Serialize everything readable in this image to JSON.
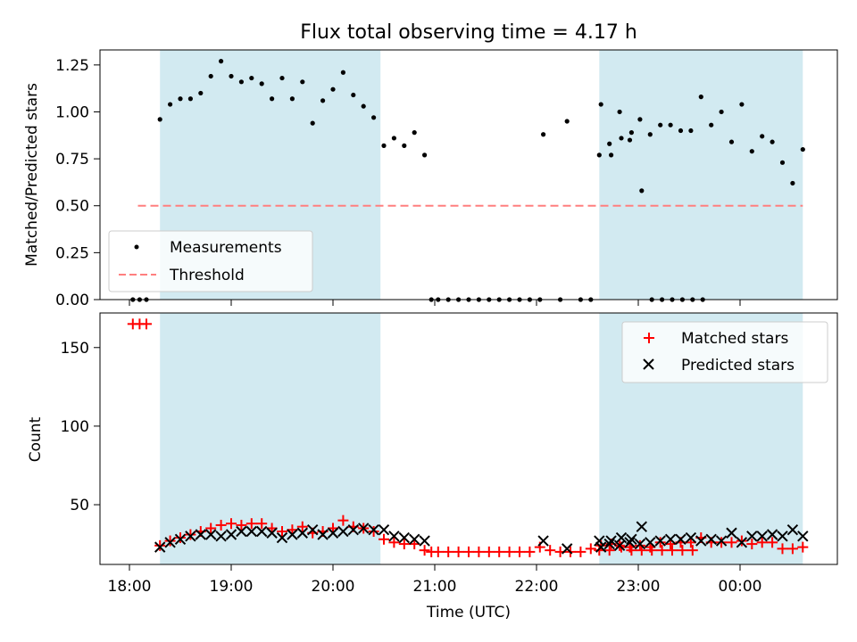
{
  "chart_data": [
    {
      "type": "scatter",
      "title": "Flux total observing time = 4.17 h",
      "ylabel": "Matched/Predicted stars",
      "xlabel": "",
      "ylim": [
        0,
        1.33
      ],
      "yticks": [
        0.0,
        0.25,
        0.5,
        0.75,
        1.0,
        1.25
      ],
      "ytick_labels": [
        "0.00",
        "0.25",
        "0.50",
        "0.75",
        "1.00",
        "1.25"
      ],
      "shaded_spans": [
        [
          "18:18",
          "20:28"
        ],
        [
          "22:37",
          "00:37"
        ]
      ],
      "shade_color": "#add8e6",
      "legend": {
        "placement": "lower-left",
        "entries": [
          "Measurements",
          "Threshold"
        ]
      },
      "series": [
        {
          "name": "Measurements",
          "color": "#000000",
          "marker": "dot",
          "points": [
            [
              "18:02",
              0
            ],
            [
              "18:06",
              0
            ],
            [
              "18:10",
              0
            ],
            [
              "18:18",
              0.96
            ],
            [
              "18:24",
              1.04
            ],
            [
              "18:30",
              1.07
            ],
            [
              "18:36",
              1.07
            ],
            [
              "18:42",
              1.1
            ],
            [
              "18:48",
              1.19
            ],
            [
              "18:54",
              1.27
            ],
            [
              "19:00",
              1.19
            ],
            [
              "19:06",
              1.16
            ],
            [
              "19:12",
              1.18
            ],
            [
              "19:18",
              1.15
            ],
            [
              "19:24",
              1.07
            ],
            [
              "19:30",
              1.18
            ],
            [
              "19:36",
              1.07
            ],
            [
              "19:42",
              1.16
            ],
            [
              "19:48",
              0.94
            ],
            [
              "19:54",
              1.06
            ],
            [
              "20:00",
              1.12
            ],
            [
              "20:06",
              1.21
            ],
            [
              "20:12",
              1.09
            ],
            [
              "20:18",
              1.03
            ],
            [
              "20:24",
              0.97
            ],
            [
              "20:30",
              0.82
            ],
            [
              "20:36",
              0.86
            ],
            [
              "20:42",
              0.82
            ],
            [
              "20:48",
              0.89
            ],
            [
              "20:54",
              0.77
            ],
            [
              "20:58",
              0
            ],
            [
              "21:02",
              0
            ],
            [
              "21:08",
              0
            ],
            [
              "21:14",
              0
            ],
            [
              "21:20",
              0
            ],
            [
              "21:26",
              0
            ],
            [
              "21:32",
              0
            ],
            [
              "21:38",
              0
            ],
            [
              "21:44",
              0
            ],
            [
              "21:50",
              0
            ],
            [
              "21:56",
              0
            ],
            [
              "22:02",
              0
            ],
            [
              "22:04",
              0.88
            ],
            [
              "22:14",
              0
            ],
            [
              "22:18",
              0.95
            ],
            [
              "22:26",
              0
            ],
            [
              "22:32",
              0
            ],
            [
              "22:38",
              1.04
            ],
            [
              "22:44",
              0.77
            ],
            [
              "22:50",
              0.86
            ],
            [
              "22:56",
              0.89
            ],
            [
              "23:02",
              0.58
            ],
            [
              "23:08",
              0
            ],
            [
              "23:14",
              0
            ],
            [
              "23:20",
              0
            ],
            [
              "23:26",
              0
            ],
            [
              "23:32",
              0
            ],
            [
              "23:38",
              0
            ],
            [
              "22:37",
              0.77
            ],
            [
              "22:43",
              0.83
            ],
            [
              "22:49",
              1.0
            ],
            [
              "22:55",
              0.85
            ],
            [
              "23:01",
              0.96
            ],
            [
              "23:07",
              0.88
            ],
            [
              "23:13",
              0.93
            ],
            [
              "23:19",
              0.93
            ],
            [
              "23:25",
              0.9
            ],
            [
              "23:31",
              0.9
            ],
            [
              "23:37",
              1.08
            ],
            [
              "23:43",
              0.93
            ],
            [
              "23:49",
              1.0
            ],
            [
              "23:55",
              0.84
            ],
            [
              "00:01",
              1.04
            ],
            [
              "00:07",
              0.79
            ],
            [
              "00:13",
              0.87
            ],
            [
              "00:19",
              0.84
            ],
            [
              "00:25",
              0.73
            ],
            [
              "00:31",
              0.62
            ],
            [
              "00:37",
              0.8
            ]
          ]
        },
        {
          "name": "Threshold",
          "color": "#ff7f7f",
          "style": "dashed",
          "points": [
            [
              "18:05",
              0.5
            ],
            [
              "00:37",
              0.5
            ]
          ]
        }
      ]
    },
    {
      "type": "scatter",
      "title": "",
      "xlabel": "Time (UTC)",
      "ylabel": "Count",
      "ylim": [
        12,
        172
      ],
      "yticks": [
        50,
        100,
        150
      ],
      "ytick_labels": [
        "50",
        "100",
        "150"
      ],
      "xticks": [
        "18:00",
        "19:00",
        "20:00",
        "21:00",
        "22:00",
        "23:00",
        "00:00"
      ],
      "xtick_labels": [
        "18:00",
        "19:00",
        "20:00",
        "21:00",
        "22:00",
        "23:00",
        "00:00"
      ],
      "shaded_spans": [
        [
          "18:18",
          "20:28"
        ],
        [
          "22:37",
          "00:37"
        ]
      ],
      "shade_color": "#add8e6",
      "legend": {
        "placement": "upper-right",
        "entries": [
          "Matched stars",
          "Predicted stars"
        ]
      },
      "series": [
        {
          "name": "Matched stars",
          "color": "#ff0000",
          "marker": "plus",
          "points": [
            [
              "18:02",
              165
            ],
            [
              "18:06",
              165
            ],
            [
              "18:10",
              165
            ],
            [
              "18:18",
              24
            ],
            [
              "18:24",
              27
            ],
            [
              "18:30",
              29
            ],
            [
              "18:36",
              31
            ],
            [
              "18:42",
              33
            ],
            [
              "18:48",
              35
            ],
            [
              "18:54",
              37
            ],
            [
              "19:00",
              38
            ],
            [
              "19:06",
              37
            ],
            [
              "19:12",
              38
            ],
            [
              "19:18",
              38
            ],
            [
              "19:24",
              35
            ],
            [
              "19:30",
              33
            ],
            [
              "19:36",
              34
            ],
            [
              "19:42",
              36
            ],
            [
              "19:48",
              32
            ],
            [
              "19:54",
              33
            ],
            [
              "20:00",
              35
            ],
            [
              "20:06",
              40
            ],
            [
              "20:12",
              36
            ],
            [
              "20:18",
              35
            ],
            [
              "20:24",
              33
            ],
            [
              "20:30",
              28
            ],
            [
              "20:36",
              26
            ],
            [
              "20:42",
              25
            ],
            [
              "20:48",
              25
            ],
            [
              "20:54",
              21
            ],
            [
              "20:58",
              20
            ],
            [
              "21:02",
              20
            ],
            [
              "21:08",
              20
            ],
            [
              "21:14",
              20
            ],
            [
              "21:20",
              20
            ],
            [
              "21:26",
              20
            ],
            [
              "21:32",
              20
            ],
            [
              "21:38",
              20
            ],
            [
              "21:44",
              20
            ],
            [
              "21:50",
              20
            ],
            [
              "21:56",
              20
            ],
            [
              "22:02",
              23
            ],
            [
              "22:08",
              21
            ],
            [
              "22:14",
              20
            ],
            [
              "22:20",
              20
            ],
            [
              "22:26",
              20
            ],
            [
              "22:32",
              22
            ],
            [
              "22:38",
              24
            ],
            [
              "22:44",
              25
            ],
            [
              "22:50",
              23
            ],
            [
              "22:56",
              21
            ],
            [
              "23:02",
              21
            ],
            [
              "23:08",
              21
            ],
            [
              "23:14",
              21
            ],
            [
              "23:20",
              21
            ],
            [
              "23:26",
              21
            ],
            [
              "23:32",
              21
            ],
            [
              "22:37",
              21
            ],
            [
              "22:43",
              21
            ],
            [
              "22:49",
              24
            ],
            [
              "22:55",
              23
            ],
            [
              "23:01",
              24
            ],
            [
              "23:07",
              23
            ],
            [
              "23:13",
              26
            ],
            [
              "23:19",
              25
            ],
            [
              "23:25",
              26
            ],
            [
              "23:31",
              26
            ],
            [
              "23:37",
              29
            ],
            [
              "23:43",
              26
            ],
            [
              "23:49",
              26
            ],
            [
              "23:55",
              26
            ],
            [
              "00:01",
              27
            ],
            [
              "00:07",
              25
            ],
            [
              "00:13",
              26
            ],
            [
              "00:19",
              26
            ],
            [
              "00:25",
              22
            ],
            [
              "00:31",
              22
            ],
            [
              "00:37",
              23
            ]
          ]
        },
        {
          "name": "Predicted stars",
          "color": "#000000",
          "marker": "x",
          "points": [
            [
              "18:18",
              23
            ],
            [
              "18:24",
              26
            ],
            [
              "18:30",
              28
            ],
            [
              "18:36",
              30
            ],
            [
              "18:42",
              31
            ],
            [
              "18:48",
              31
            ],
            [
              "18:54",
              30
            ],
            [
              "19:00",
              31
            ],
            [
              "19:06",
              33
            ],
            [
              "19:12",
              33
            ],
            [
              "19:18",
              33
            ],
            [
              "19:24",
              32
            ],
            [
              "19:30",
              29
            ],
            [
              "19:36",
              31
            ],
            [
              "19:42",
              32
            ],
            [
              "19:48",
              34
            ],
            [
              "19:54",
              31
            ],
            [
              "20:00",
              32
            ],
            [
              "20:06",
              33
            ],
            [
              "20:12",
              34
            ],
            [
              "20:18",
              35
            ],
            [
              "20:24",
              34
            ],
            [
              "20:30",
              34
            ],
            [
              "20:36",
              30
            ],
            [
              "20:42",
              29
            ],
            [
              "20:48",
              28
            ],
            [
              "20:54",
              27
            ],
            [
              "22:04",
              27
            ],
            [
              "22:18",
              22
            ],
            [
              "22:38",
              23
            ],
            [
              "22:44",
              27
            ],
            [
              "22:50",
              29
            ],
            [
              "22:56",
              28
            ],
            [
              "23:02",
              36
            ],
            [
              "22:37",
              27
            ],
            [
              "22:43",
              25
            ],
            [
              "22:49",
              24
            ],
            [
              "22:55",
              26
            ],
            [
              "23:01",
              25
            ],
            [
              "23:07",
              26
            ],
            [
              "23:13",
              27
            ],
            [
              "23:19",
              28
            ],
            [
              "23:25",
              28
            ],
            [
              "23:31",
              29
            ],
            [
              "23:37",
              27
            ],
            [
              "23:43",
              28
            ],
            [
              "23:49",
              27
            ],
            [
              "23:55",
              32
            ],
            [
              "00:01",
              26
            ],
            [
              "00:07",
              30
            ],
            [
              "00:13",
              30
            ],
            [
              "00:19",
              31
            ],
            [
              "00:25",
              30
            ],
            [
              "00:31",
              34
            ],
            [
              "00:37",
              30
            ]
          ]
        }
      ]
    }
  ]
}
